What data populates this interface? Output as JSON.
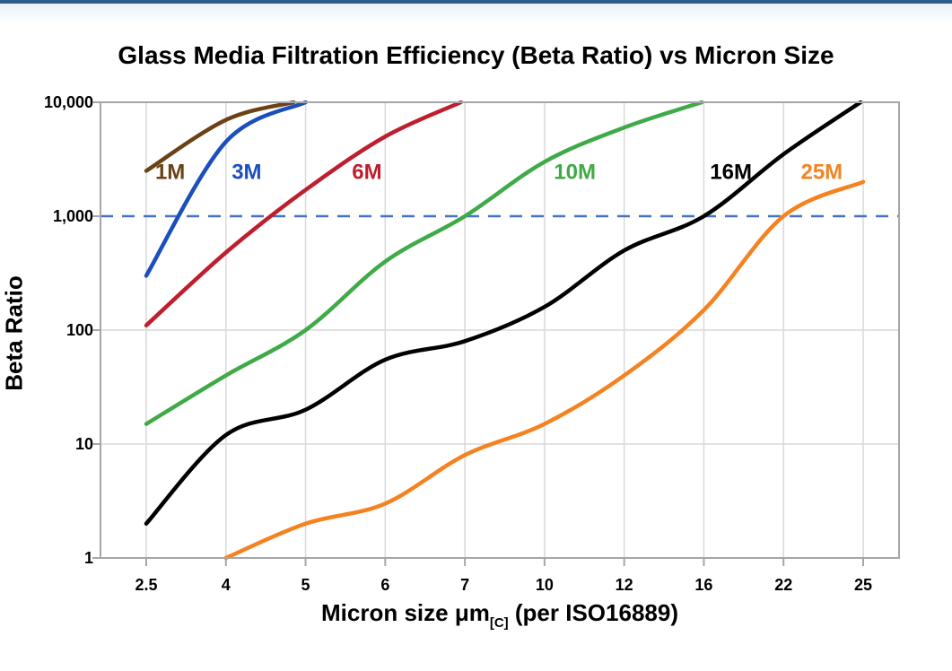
{
  "page": {
    "title": "Glass Media Filtration Efficiency (Beta Ratio) vs Micron Size",
    "top_bar_color": "#2e5c8a"
  },
  "chart_data": {
    "type": "line",
    "title": "Glass Media Filtration Efficiency (Beta Ratio) vs Micron Size",
    "xlabel_main": "Micron size μm",
    "xlabel_sub": "[C]",
    "xlabel_suffix": " (per ISO16889)",
    "ylabel": "Beta Ratio",
    "x_scale": "ordinal",
    "y_scale": "log",
    "ylim": [
      1,
      10000
    ],
    "grid": true,
    "grid_color": "#d9d9d9",
    "frame_color": "#a6a6a6",
    "categories": [
      2.5,
      4,
      5,
      6,
      7,
      10,
      12,
      16,
      22,
      25
    ],
    "x_tick_labels": [
      "2.5",
      "4",
      "5",
      "6",
      "7",
      "10",
      "12",
      "16",
      "22",
      "25"
    ],
    "y_ticks": [
      1,
      10,
      100,
      1000,
      10000
    ],
    "y_tick_labels": [
      "1",
      "10",
      "100",
      "1,000",
      "10,000"
    ],
    "reference_line": {
      "value": 1000,
      "style": "dashed",
      "color": "#4472c4"
    },
    "series": [
      {
        "name": "1M",
        "color": "#6a4216",
        "points": [
          [
            2.5,
            2500
          ],
          [
            4,
            7000
          ],
          [
            4.85,
            10000
          ]
        ]
      },
      {
        "name": "3M",
        "color": "#1b4fbe",
        "points": [
          [
            2.5,
            300
          ],
          [
            4,
            4500
          ],
          [
            5,
            10000
          ]
        ]
      },
      {
        "name": "6M",
        "color": "#be1e2d",
        "points": [
          [
            2.5,
            110
          ],
          [
            4,
            480
          ],
          [
            5,
            1700
          ],
          [
            6,
            5000
          ],
          [
            6.95,
            10000
          ]
        ]
      },
      {
        "name": "10M",
        "color": "#3faa47",
        "points": [
          [
            2.5,
            15
          ],
          [
            4,
            40
          ],
          [
            5,
            100
          ],
          [
            6,
            400
          ],
          [
            7,
            1000
          ],
          [
            10,
            3000
          ],
          [
            12,
            6000
          ],
          [
            15.9,
            10000
          ]
        ]
      },
      {
        "name": "16M",
        "color": "#000000",
        "points": [
          [
            2.5,
            2
          ],
          [
            4,
            12
          ],
          [
            5,
            20
          ],
          [
            6,
            55
          ],
          [
            7,
            80
          ],
          [
            10,
            160
          ],
          [
            12,
            500
          ],
          [
            16,
            1000
          ],
          [
            22,
            3500
          ],
          [
            24.9,
            10000
          ]
        ]
      },
      {
        "name": "25M",
        "color": "#f58220",
        "points": [
          [
            4,
            1
          ],
          [
            5,
            2
          ],
          [
            6,
            3
          ],
          [
            7,
            8
          ],
          [
            10,
            15
          ],
          [
            12,
            40
          ],
          [
            16,
            150
          ],
          [
            22,
            1000
          ],
          [
            25,
            2000
          ]
        ]
      }
    ],
    "series_labels": [
      {
        "text": "1M",
        "color": "#6a4216",
        "tick_pos": 0.3,
        "value": 2500
      },
      {
        "text": "3M",
        "color": "#1b4fbe",
        "tick_pos": 1.26,
        "value": 2500
      },
      {
        "text": "6M",
        "color": "#be1e2d",
        "tick_pos": 2.77,
        "value": 2500
      },
      {
        "text": "10M",
        "color": "#3faa47",
        "tick_pos": 5.38,
        "value": 2500
      },
      {
        "text": "16M",
        "color": "#000000",
        "tick_pos": 7.34,
        "value": 2500
      },
      {
        "text": "25M",
        "color": "#f58220",
        "tick_pos": 8.48,
        "value": 2500
      }
    ]
  }
}
